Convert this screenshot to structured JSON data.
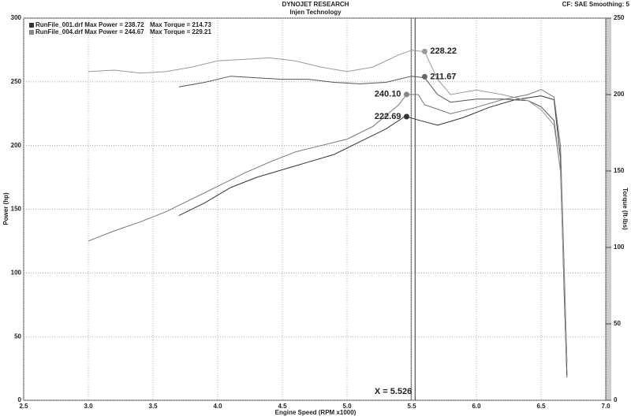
{
  "chart_data": {
    "type": "line",
    "title": "DYNOJET RESEARCH",
    "subtitle": "Injen Technology",
    "settings_label": "CF: SAE  Smoothing: 5",
    "x_label": "Engine Speed (RPM x1000)",
    "y_label": "Power (hp)",
    "y2_label": "Torque (ft-lbs)",
    "xlim": [
      2.5,
      7.0
    ],
    "xticks": [
      2.5,
      {
        "value": 3,
        "label": "3.0"
      },
      3.5,
      {
        "value": 4,
        "label": "4.0"
      },
      4.5,
      {
        "value": 5,
        "label": "5.0"
      },
      5.5,
      {
        "value": 6,
        "label": "6.0"
      },
      6.5,
      {
        "value": 7,
        "label": "7.0"
      }
    ],
    "ylim": [
      0,
      300
    ],
    "yticks": [
      0,
      50,
      100,
      150,
      200,
      250,
      300
    ],
    "y2lim": [
      0,
      250
    ],
    "y2ticks": [
      0,
      50,
      100,
      150,
      200,
      250
    ],
    "grid": true,
    "legend": [
      {
        "color": "#333333",
        "text": "RunFile_001.drf Max Power = 238.72",
        "text2": "Max Torque = 214.73"
      },
      {
        "color": "#888888",
        "text": "RunFile_004.drf Max Power = 244.67",
        "text2": "Max Torque = 229.21"
      }
    ],
    "series": [
      {
        "color": "#333333",
        "axis": "y",
        "x": [
          3.7,
          3.9,
          4.1,
          4.3,
          4.5,
          4.7,
          4.9,
          5.1,
          5.3,
          5.45,
          5.55,
          5.7,
          5.9,
          6.1,
          6.3,
          6.5,
          6.6,
          6.65,
          6.68,
          6.7
        ],
        "values": [
          145,
          155,
          167,
          175,
          181,
          187,
          193,
          203,
          213,
          223,
          220,
          216,
          222,
          230,
          236,
          239,
          236,
          190,
          80,
          20
        ]
      },
      {
        "color": "#777777",
        "axis": "y",
        "x": [
          3.0,
          3.2,
          3.4,
          3.6,
          3.8,
          4.0,
          4.2,
          4.4,
          4.6,
          4.8,
          5.0,
          5.2,
          5.4,
          5.46,
          5.55,
          5.6,
          5.8,
          6.0,
          6.2,
          6.4,
          6.5,
          6.6,
          6.65,
          6.68,
          6.7
        ],
        "values": [
          125,
          133,
          140,
          148,
          158,
          168,
          178,
          187,
          195,
          200,
          205,
          215,
          232,
          240,
          240,
          232,
          225,
          230,
          236,
          240,
          244,
          238,
          200,
          100,
          30
        ]
      },
      {
        "color": "#555555",
        "axis": "y2",
        "x": [
          3.7,
          3.9,
          4.1,
          4.3,
          4.5,
          4.7,
          4.9,
          5.1,
          5.3,
          5.5,
          5.6,
          5.7,
          5.8,
          6.0,
          6.2,
          6.4,
          6.5,
          6.6,
          6.65,
          6.7
        ],
        "values": [
          205,
          208,
          212,
          211,
          210,
          210,
          208,
          207,
          208,
          212,
          211,
          200,
          195,
          197,
          197,
          196,
          192,
          183,
          150,
          15
        ]
      },
      {
        "color": "#999999",
        "axis": "y2",
        "x": [
          3.0,
          3.2,
          3.4,
          3.6,
          3.8,
          4.0,
          4.2,
          4.4,
          4.6,
          4.8,
          5.0,
          5.2,
          5.4,
          5.5,
          5.6,
          5.7,
          5.8,
          6.0,
          6.2,
          6.4,
          6.5,
          6.6,
          6.65,
          6.7
        ],
        "values": [
          215,
          216,
          214,
          215,
          218,
          222,
          223,
          224,
          222,
          218,
          215,
          218,
          226,
          229,
          228,
          210,
          200,
          203,
          200,
          196,
          190,
          180,
          150,
          25
        ]
      }
    ],
    "annotations": [
      {
        "label": "228.22",
        "value": 228.22,
        "x": 5.6,
        "axis": "y2",
        "color": "#999999"
      },
      {
        "label": "211.67",
        "value": 211.67,
        "x": 5.6,
        "axis": "y2",
        "color": "#666666"
      },
      {
        "label": "240.10",
        "value": 240.1,
        "x": 5.46,
        "axis": "y",
        "color": "#888888"
      },
      {
        "label": "222.69",
        "value": 222.69,
        "x": 5.46,
        "axis": "y",
        "color": "#333333"
      }
    ],
    "cursor": {
      "label": "X = 5.526",
      "value": 5.526
    }
  }
}
